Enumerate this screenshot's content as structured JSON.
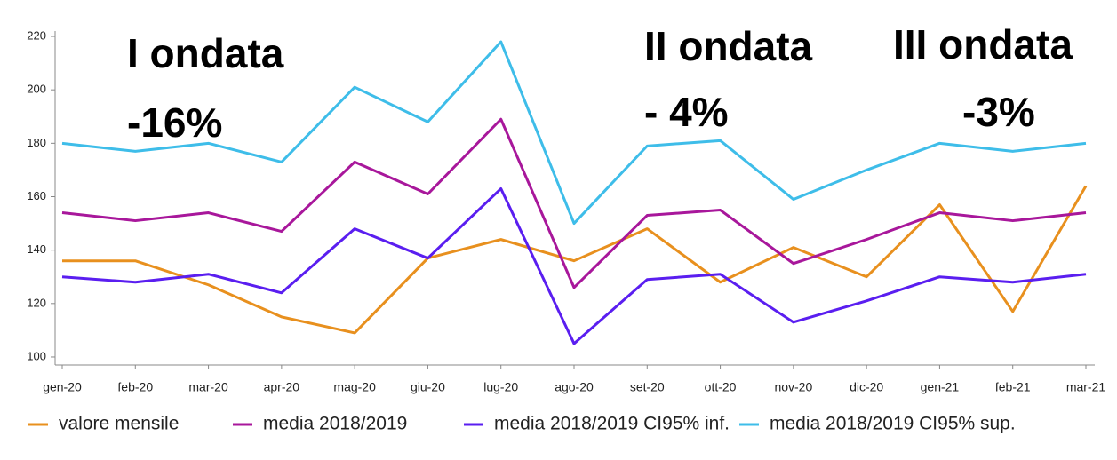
{
  "chart_data": {
    "type": "line",
    "categories": [
      "gen-20",
      "feb-20",
      "mar-20",
      "apr-20",
      "mag-20",
      "giu-20",
      "lug-20",
      "ago-20",
      "set-20",
      "ott-20",
      "nov-20",
      "dic-20",
      "gen-21",
      "feb-21",
      "mar-21"
    ],
    "series": [
      {
        "name": "valore mensile",
        "color": "#e8901e",
        "values": [
          136,
          136,
          127,
          115,
          109,
          137,
          144,
          136,
          148,
          128,
          141,
          130,
          157,
          117,
          164
        ]
      },
      {
        "name": "media 2018/2019",
        "color": "#a8179b",
        "values": [
          154,
          151,
          154,
          147,
          173,
          161,
          189,
          126,
          153,
          155,
          135,
          144,
          154,
          151,
          154
        ]
      },
      {
        "name": "media 2018/2019 CI95% inf.",
        "color": "#5a1ef0",
        "values": [
          130,
          128,
          131,
          124,
          148,
          137,
          163,
          105,
          129,
          131,
          113,
          121,
          130,
          128,
          131
        ]
      },
      {
        "name": "media 2018/2019 CI95% sup.",
        "color": "#3ebde9",
        "values": [
          180,
          177,
          180,
          173,
          201,
          188,
          218,
          150,
          179,
          181,
          159,
          170,
          180,
          177,
          180
        ]
      }
    ],
    "ylim": [
      97,
      222
    ],
    "yticks": [
      100,
      120,
      140,
      160,
      180,
      200,
      220
    ],
    "grid": false,
    "legend": "bottom",
    "annotations": [
      "I ondata",
      "-16%",
      "II ondata",
      "- 4%",
      "III ondata",
      "-3%"
    ]
  }
}
